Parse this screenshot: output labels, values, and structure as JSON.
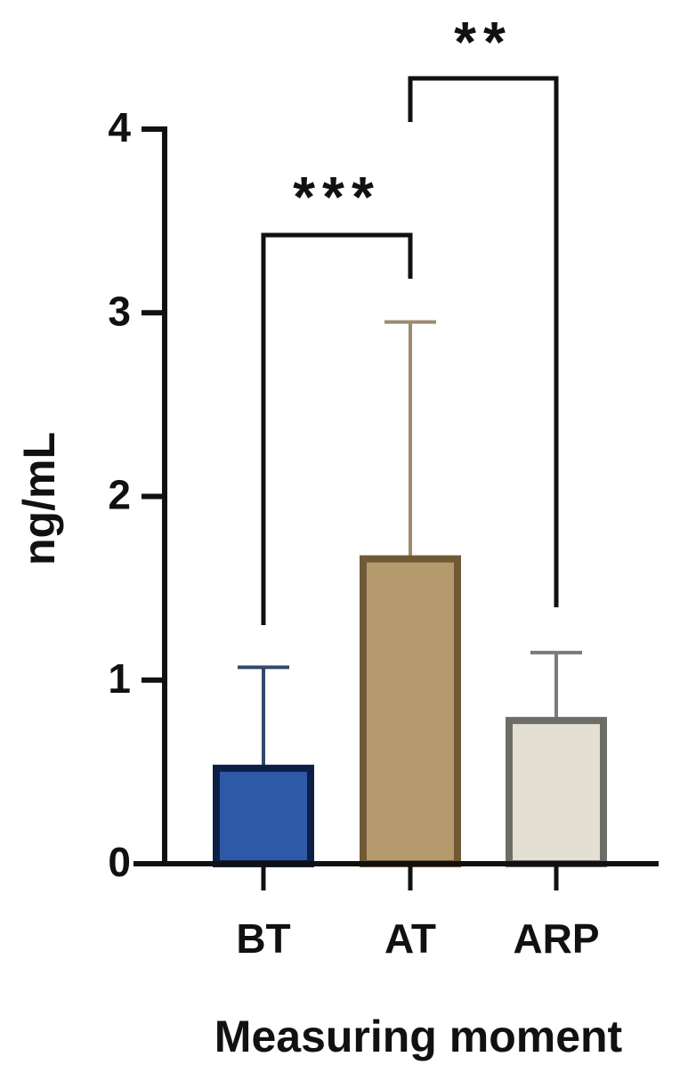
{
  "chart_data": {
    "type": "bar",
    "categories": [
      "BT",
      "AT",
      "ARP"
    ],
    "values": [
      0.52,
      1.66,
      0.78
    ],
    "errors": [
      0.55,
      1.29,
      0.37
    ],
    "colors": [
      "#2e59a7",
      "#b59a6d",
      "#e3dfd3"
    ],
    "edge_colors": [
      "#0d1f44",
      "#6f5a35",
      "#6d6d68"
    ],
    "error_colors": [
      "#33486a",
      "#9c8b6f",
      "#7b7b7b"
    ],
    "xlabel": "Measuring moment",
    "ylabel": "ng/mL",
    "ylim": [
      0,
      4
    ],
    "yticks": [
      0,
      1,
      2,
      3,
      4
    ],
    "annotations": [
      "***",
      "**"
    ]
  }
}
